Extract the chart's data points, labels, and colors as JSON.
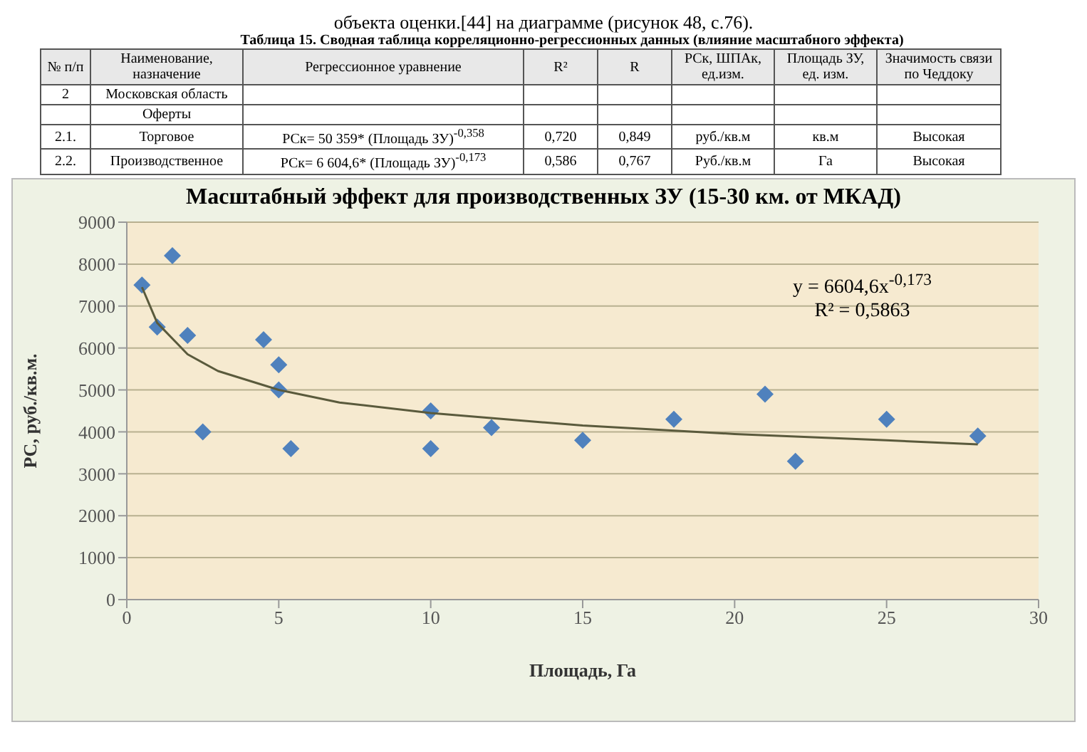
{
  "chart_data": {
    "type": "scatter",
    "title": "Масштабный эффект для производственных ЗУ (15-30 км. от МКАД)",
    "xlabel": "Площадь, Га",
    "ylabel": "РС, руб./кв.м.",
    "annotations": [
      "объекта оценки.[44] на диаграмме (рисунок 48, с.76).",
      "Таблица 15. Сводная таблица корреляционно-регрессионных данных (влияние масштабного эффекта)",
      "№ п/п",
      "Наименование, назначение",
      "Регрессионное уравнение",
      "R²",
      "R",
      "РСк, ШПАк, ед.изм.",
      "Площадь ЗУ, ед. изм.",
      "Значимость связи по Чеддоку",
      "2",
      "Московская область",
      "Оферты",
      "2.1.",
      "Торговое",
      "РСк= 50 359* (Площадь ЗУ)$^{-0,358}$",
      "0,720",
      "0,849",
      "руб./кв.м",
      "кв.м",
      "Высокая",
      "2.2.",
      "Производственное",
      "РСк= 6 604,6* (Площадь ЗУ)$^{-0,173}$",
      "0,586",
      "0,767",
      "Руб./кв.м",
      "Га",
      "Высокая",
      "y = 6604,6x$^{-0,173}$",
      "R² = 0,5863"
    ],
    "series": [
      {
        "type": "scatter",
        "color": "#4f81bd",
        "marker": "diamond",
        "x": [
          0.5,
          1,
          1.5,
          2,
          2.5,
          4.5,
          5,
          5,
          5.4,
          10,
          10,
          12,
          15,
          18,
          21,
          22,
          25,
          28
        ],
        "values": [
          7500,
          6500,
          8200,
          6300,
          4000,
          6200,
          5600,
          5000,
          3600,
          4500,
          3600,
          4100,
          3800,
          4300,
          4900,
          3300,
          4300,
          3900
        ]
      },
      {
        "type": "line",
        "color": "#5a5a3c",
        "x": [
          0.5,
          1,
          2,
          3,
          5,
          7,
          10,
          15,
          20,
          25,
          28
        ],
        "values": [
          7450,
          6600,
          5850,
          5450,
          5000,
          4700,
          4450,
          4150,
          3950,
          3800,
          3700
        ]
      }
    ],
    "xlim": [
      0,
      30
    ],
    "xticks": [
      0,
      5,
      10,
      15,
      20,
      25,
      30
    ],
    "ylim": [
      0,
      9000
    ],
    "yticks": [
      0,
      1000,
      2000,
      3000,
      4000,
      5000,
      6000,
      7000,
      8000,
      9000
    ],
    "grid": "y",
    "legend": false
  }
}
